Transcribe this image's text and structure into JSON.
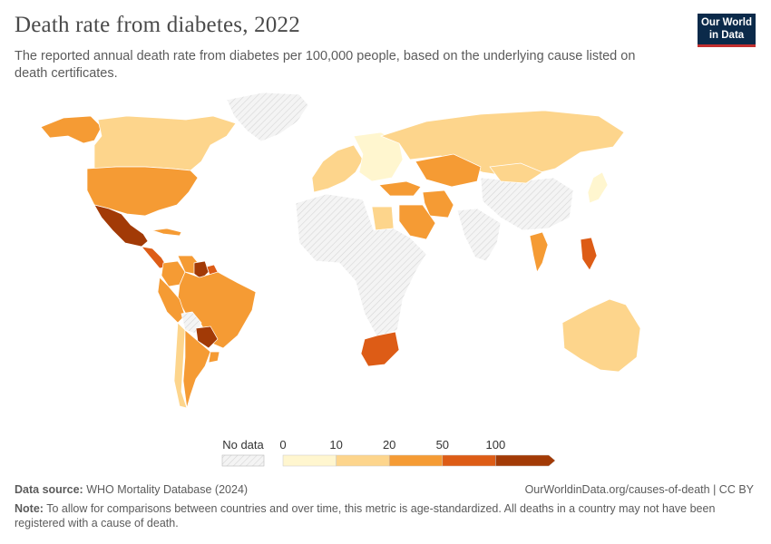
{
  "header": {
    "title": "Death rate from diabetes, 2022",
    "subtitle": "The reported annual death rate from diabetes per 100,000 people, based on the underlying cause listed on death certificates.",
    "logo_line1": "Our World",
    "logo_line2": "in Data"
  },
  "legend": {
    "no_data_label": "No data",
    "ticks": [
      "0",
      "10",
      "20",
      "50",
      "100"
    ],
    "bins": [
      {
        "range": "0-10",
        "color": "#fff6cf"
      },
      {
        "range": "10-20",
        "color": "#fdd58c"
      },
      {
        "range": "20-50",
        "color": "#f59b34"
      },
      {
        "range": "50-100",
        "color": "#dd5c16"
      },
      {
        "range": ">100",
        "color": "#a23a06"
      }
    ],
    "no_data_color": "#f2f2f2"
  },
  "footer": {
    "source_label": "Data source:",
    "source_text": "WHO Mortality Database (2024)",
    "url": "OurWorldinData.org/causes-of-death | CC BY",
    "note_label": "Note:",
    "note_text": "To allow for comparisons between countries and over time, this metric is age-standardized. All deaths in a country may not have been registered with a cause of death."
  },
  "map_regions": [
    {
      "name": "Alaska",
      "bin": "20-50"
    },
    {
      "name": "Canada",
      "bin": "10-20"
    },
    {
      "name": "United States",
      "bin": "20-50"
    },
    {
      "name": "Mexico",
      "bin": ">100"
    },
    {
      "name": "Central America",
      "bin": "50-100"
    },
    {
      "name": "Cuba",
      "bin": "20-50"
    },
    {
      "name": "Greenland",
      "bin": "no-data"
    },
    {
      "name": "Colombia",
      "bin": "20-50"
    },
    {
      "name": "Venezuela",
      "bin": "20-50"
    },
    {
      "name": "Guyana",
      "bin": ">100"
    },
    {
      "name": "Suriname",
      "bin": "50-100"
    },
    {
      "name": "Brazil",
      "bin": "20-50"
    },
    {
      "name": "Peru",
      "bin": "20-50"
    },
    {
      "name": "Bolivia",
      "bin": "no-data"
    },
    {
      "name": "Paraguay",
      "bin": ">100"
    },
    {
      "name": "Chile",
      "bin": "10-20"
    },
    {
      "name": "Argentina",
      "bin": "20-50"
    },
    {
      "name": "Uruguay",
      "bin": "20-50"
    },
    {
      "name": "Western Europe",
      "bin": "10-20"
    },
    {
      "name": "Eastern Europe",
      "bin": "0-10"
    },
    {
      "name": "Russia",
      "bin": "10-20"
    },
    {
      "name": "Kazakhstan",
      "bin": "20-50"
    },
    {
      "name": "Turkey",
      "bin": "20-50"
    },
    {
      "name": "Iran",
      "bin": "20-50"
    },
    {
      "name": "Saudi Arabia",
      "bin": "20-50"
    },
    {
      "name": "Egypt",
      "bin": "10-20"
    },
    {
      "name": "Africa",
      "bin": "no-data"
    },
    {
      "name": "South Africa",
      "bin": "50-100"
    },
    {
      "name": "China",
      "bin": "no-data"
    },
    {
      "name": "India",
      "bin": "no-data"
    },
    {
      "name": "Thailand",
      "bin": "20-50"
    },
    {
      "name": "Philippines",
      "bin": "50-100"
    },
    {
      "name": "Japan",
      "bin": "0-10"
    },
    {
      "name": "Australia",
      "bin": "10-20"
    },
    {
      "name": "Mongolia",
      "bin": "10-20"
    }
  ]
}
